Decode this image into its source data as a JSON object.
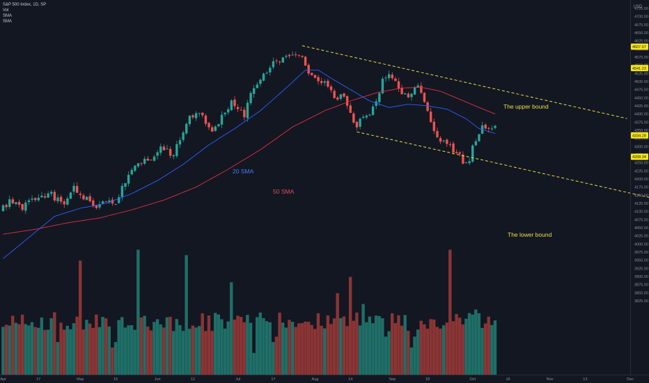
{
  "legend": {
    "symbol": "S&P 500 Index, 1D, SP",
    "vol": "Vol",
    "sma1": "SMA",
    "sma2": "SMA"
  },
  "currency": "USD",
  "colors": {
    "bg": "#131722",
    "up": "#26a69a",
    "down": "#ef5350",
    "sma20": "#2962ff",
    "sma50": "#e0303f",
    "channel": "#e8e045",
    "volUp": "#1f6f67",
    "volDown": "#8b3535"
  },
  "chart_data": {
    "type": "candlestick",
    "price_axis": {
      "ylim": [
        3800,
        4750
      ],
      "ticks": [
        "4725.00",
        "4700.00",
        "4675.00",
        "4650.00",
        "4625.00",
        "4600.00",
        "4575.00",
        "4550.00",
        "4525.00",
        "4500.00",
        "4475.00",
        "4450.00",
        "4425.00",
        "4400.00",
        "4375.00",
        "4350.00",
        "4325.00",
        "4300.00",
        "4275.00",
        "4250.00",
        "4225.00",
        "4200.00",
        "4175.00",
        "4150.00",
        "4125.00",
        "4100.00",
        "4075.00",
        "4050.00",
        "4025.00",
        "4000.00",
        "3975.00",
        "3950.00",
        "3925.00",
        "3900.00",
        "3875.00",
        "3850.00",
        "3825.00"
      ]
    },
    "time_axis": {
      "labels": [
        "Apr",
        "17",
        "May",
        "15",
        "Jun",
        "12",
        "Jul",
        "17",
        "Aug",
        "14",
        "Sep",
        "18",
        "Oct",
        "16",
        "Nov",
        "13",
        "Dec"
      ],
      "index": [
        0,
        11,
        24,
        35,
        48,
        59,
        73,
        84,
        97,
        108,
        121,
        132,
        146,
        157,
        170,
        181,
        195
      ]
    },
    "price_badges": [
      "4607.07",
      "4541.23",
      "4334.28",
      "4268.34"
    ],
    "candle_count": 154,
    "price_path": [
      [
        0,
        4100
      ],
      [
        3,
        4130
      ],
      [
        7,
        4115
      ],
      [
        11,
        4140
      ],
      [
        16,
        4150
      ],
      [
        20,
        4120
      ],
      [
        23,
        4170
      ],
      [
        26,
        4145
      ],
      [
        30,
        4110
      ],
      [
        33,
        4135
      ],
      [
        36,
        4130
      ],
      [
        39,
        4190
      ],
      [
        43,
        4245
      ],
      [
        47,
        4260
      ],
      [
        50,
        4290
      ],
      [
        54,
        4275
      ],
      [
        58,
        4380
      ],
      [
        62,
        4400
      ],
      [
        66,
        4350
      ],
      [
        69,
        4390
      ],
      [
        72,
        4440
      ],
      [
        76,
        4400
      ],
      [
        78,
        4455
      ],
      [
        82,
        4515
      ],
      [
        85,
        4570
      ],
      [
        89,
        4570
      ],
      [
        92,
        4585
      ],
      [
        93,
        4590
      ],
      [
        94,
        4565
      ],
      [
        97,
        4510
      ],
      [
        101,
        4490
      ],
      [
        104,
        4455
      ],
      [
        107,
        4450
      ],
      [
        109,
        4395
      ],
      [
        111,
        4360
      ],
      [
        113,
        4395
      ],
      [
        115,
        4390
      ],
      [
        117,
        4445
      ],
      [
        119,
        4505
      ],
      [
        121,
        4525
      ],
      [
        123,
        4510
      ],
      [
        125,
        4465
      ],
      [
        127,
        4460
      ],
      [
        130,
        4485
      ],
      [
        131,
        4455
      ],
      [
        133,
        4405
      ],
      [
        135,
        4340
      ],
      [
        137,
        4320
      ],
      [
        139,
        4300
      ],
      [
        142,
        4288
      ],
      [
        144,
        4250
      ],
      [
        146,
        4265
      ],
      [
        148,
        4320
      ],
      [
        150,
        4355
      ],
      [
        153,
        4358
      ]
    ],
    "sma20_path": [
      [
        0,
        3955
      ],
      [
        8,
        4020
      ],
      [
        16,
        4085
      ],
      [
        24,
        4110
      ],
      [
        32,
        4125
      ],
      [
        40,
        4155
      ],
      [
        48,
        4195
      ],
      [
        56,
        4245
      ],
      [
        64,
        4305
      ],
      [
        72,
        4355
      ],
      [
        80,
        4410
      ],
      [
        88,
        4480
      ],
      [
        94,
        4535
      ],
      [
        98,
        4535
      ],
      [
        102,
        4510
      ],
      [
        108,
        4475
      ],
      [
        114,
        4440
      ],
      [
        120,
        4420
      ],
      [
        126,
        4430
      ],
      [
        132,
        4425
      ],
      [
        138,
        4415
      ],
      [
        144,
        4385
      ],
      [
        148,
        4355
      ],
      [
        153,
        4340
      ]
    ],
    "sma50_path": [
      [
        0,
        4030
      ],
      [
        10,
        4045
      ],
      [
        20,
        4065
      ],
      [
        30,
        4080
      ],
      [
        40,
        4105
      ],
      [
        50,
        4135
      ],
      [
        60,
        4175
      ],
      [
        70,
        4230
      ],
      [
        80,
        4290
      ],
      [
        90,
        4360
      ],
      [
        100,
        4410
      ],
      [
        108,
        4440
      ],
      [
        116,
        4465
      ],
      [
        124,
        4480
      ],
      [
        130,
        4482
      ],
      [
        136,
        4470
      ],
      [
        142,
        4445
      ],
      [
        148,
        4420
      ],
      [
        153,
        4400
      ]
    ],
    "volume_spikes": {
      "24": 2.1,
      "42": 2.3,
      "57": 2.2,
      "71": 1.7,
      "104": 1.5,
      "108": 1.8,
      "112": 1.3,
      "139": 2.3,
      "147": 1.2
    },
    "volume_low": {
      "17": 0.6,
      "34": 0.5,
      "35": 0.6,
      "78": 0.4,
      "84": 0.6,
      "85": 0.7,
      "119": 0.7,
      "120": 0.8,
      "127": 0.5,
      "128": 0.7
    },
    "channel": {
      "upper": [
        [
          93,
          4610
        ],
        [
          194,
          4386
        ]
      ],
      "lower": [
        [
          110,
          4345
        ],
        [
          211,
          4121
        ]
      ]
    },
    "annotations": {
      "sma20_label": "20 SMA",
      "sma50_label": "50 SMA",
      "upper_label": "The upper bound",
      "lower_label": "The lower bound"
    }
  }
}
